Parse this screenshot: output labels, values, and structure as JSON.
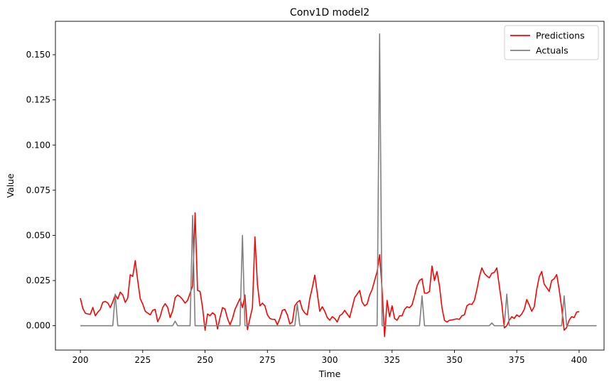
{
  "chart_data": {
    "type": "line",
    "title": "Conv1D model2",
    "xlabel": "Time",
    "ylabel": "Value",
    "xlim": [
      190,
      410
    ],
    "ylim": [
      -0.0135,
      0.1685
    ],
    "xticks": [
      200,
      225,
      250,
      275,
      300,
      325,
      350,
      375,
      400
    ],
    "yticks": [
      0.0,
      0.025,
      0.05,
      0.075,
      0.1,
      0.125,
      0.15
    ],
    "ytick_labels": [
      "0.000",
      "0.025",
      "0.050",
      "0.075",
      "0.100",
      "0.125",
      "0.150"
    ],
    "grid": false,
    "legend_position": "top-right",
    "series": [
      {
        "name": "Predictions",
        "color": "#ff0000",
        "x_start": 200,
        "x_step": 1,
        "values": [
          0.0152,
          0.0095,
          0.0069,
          0.0065,
          0.0063,
          0.0101,
          0.0055,
          0.0075,
          0.009,
          0.013,
          0.0134,
          0.0126,
          0.01,
          0.0132,
          0.0171,
          0.0148,
          0.0186,
          0.017,
          0.0129,
          0.0153,
          0.0282,
          0.0273,
          0.036,
          0.025,
          0.015,
          0.012,
          0.008,
          0.007,
          0.006,
          0.0085,
          0.009,
          0.0022,
          0.005,
          0.01,
          0.0122,
          0.0101,
          0.0045,
          0.0082,
          0.0155,
          0.017,
          0.016,
          0.0145,
          0.0125,
          0.014,
          0.018,
          0.022,
          0.0625,
          0.0195,
          0.019,
          0.01,
          -0.0025,
          0.0065,
          0.0055,
          0.0072,
          0.006,
          -0.0018,
          0.0045,
          0.01,
          0.0092,
          0.004,
          0.0005,
          0.004,
          0.009,
          0.012,
          0.015,
          0.01,
          0.017,
          -0.0022,
          0.004,
          0.01,
          0.0492,
          0.023,
          0.011,
          0.0125,
          0.011,
          0.006,
          0.004,
          0.0035,
          0.0035,
          0.0005,
          0.004,
          0.0085,
          0.009,
          0.006,
          0.001,
          0.002,
          0.011,
          0.013,
          0.014,
          0.009,
          0.007,
          0.006,
          0.015,
          0.021,
          0.028,
          0.018,
          0.008,
          0.0105,
          0.008,
          0.0045,
          0.003,
          0.005,
          0.004,
          0.002,
          0.0055,
          0.0065,
          0.0085,
          0.0065,
          0.0045,
          0.01,
          0.0155,
          0.0175,
          0.0195,
          0.013,
          0.011,
          0.012,
          0.017,
          0.02,
          0.025,
          0.03,
          0.0393,
          0.02,
          -0.006,
          0.014,
          0.005,
          0.011,
          0.004,
          0.003,
          0.0055,
          0.0055,
          0.009,
          0.0105,
          0.01,
          0.0115,
          0.0165,
          0.022,
          0.025,
          0.026,
          0.018,
          0.018,
          0.019,
          0.033,
          0.025,
          0.03,
          0.022,
          0.01,
          0.003,
          0.002,
          0.003,
          0.0032,
          0.0035,
          0.0038,
          0.0035,
          0.0055,
          0.006,
          0.011,
          0.012,
          0.0118,
          0.014,
          0.02,
          0.027,
          0.032,
          0.029,
          0.0275,
          0.0265,
          0.029,
          0.0295,
          0.032,
          0.022,
          0.012,
          -0.0012,
          0.0,
          0.003,
          0.005,
          0.004,
          0.006,
          0.005,
          0.0065,
          0.009,
          0.0145,
          0.0115,
          0.008,
          0.0105,
          0.02,
          0.027,
          0.03,
          0.023,
          0.021,
          0.019,
          0.025,
          0.026,
          0.0283,
          0.02,
          0.01,
          -0.0025,
          -0.001,
          0.003,
          0.005,
          0.0045,
          0.0075,
          0.0078
        ]
      },
      {
        "name": "Actuals",
        "color": "#808080",
        "x_start": 200,
        "x_step": 1,
        "values": [
          0,
          0,
          0,
          0,
          0,
          0,
          0,
          0,
          0,
          0,
          0,
          0,
          0,
          0,
          0.0175,
          0,
          0,
          0,
          0,
          0,
          0,
          0,
          0,
          0,
          0,
          0,
          0,
          0,
          0,
          0,
          0,
          0,
          0,
          0,
          0,
          0,
          0,
          0,
          0.0025,
          0,
          0,
          0,
          0,
          0,
          0,
          0.061,
          0,
          0,
          0,
          0,
          0,
          0,
          0,
          0,
          0,
          0,
          0,
          0,
          0,
          0,
          0,
          0,
          0,
          0,
          0,
          0.05,
          0,
          0,
          0,
          0,
          0,
          0,
          0,
          0,
          0,
          0,
          0,
          0,
          0,
          0,
          0,
          0,
          0,
          0,
          0,
          0,
          0,
          0.0118,
          0,
          0,
          0,
          0,
          0,
          0,
          0,
          0,
          0,
          0,
          0,
          0,
          0,
          0,
          0,
          0,
          0,
          0,
          0,
          0,
          0,
          0,
          0,
          0,
          0,
          0,
          0,
          0,
          0,
          0,
          0,
          0,
          0.1615,
          0,
          0,
          0,
          0,
          0,
          0,
          0,
          0,
          0,
          0,
          0,
          0,
          0,
          0,
          0,
          0,
          0.0165,
          0,
          0,
          0,
          0,
          0,
          0,
          0,
          0,
          0,
          0,
          0,
          0,
          0,
          0,
          0,
          0,
          0,
          0,
          0,
          0,
          0,
          0,
          0,
          0,
          0,
          0,
          0,
          0.0015,
          0,
          0,
          0,
          0,
          0,
          0.0175,
          0,
          0,
          0,
          0,
          0,
          0,
          0,
          0,
          0,
          0,
          0,
          0,
          0,
          0,
          0,
          0,
          0,
          0,
          0,
          0,
          0,
          0,
          0.0165,
          0,
          0,
          0,
          0,
          0,
          0,
          0,
          0,
          0,
          0,
          0,
          0,
          0
        ]
      }
    ]
  }
}
